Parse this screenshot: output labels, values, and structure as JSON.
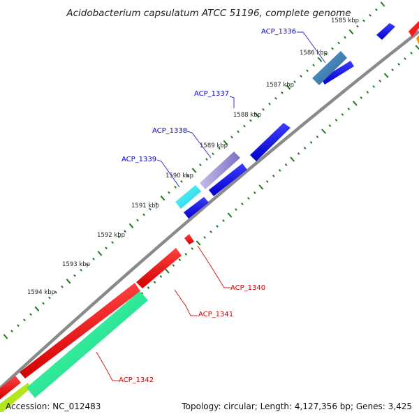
{
  "title": "Acidobacterium capsulatum ATCC 51196, complete genome",
  "footer": {
    "accession": "Accession: NC_012483",
    "topology": "Topology: circular; Length: 4,127,356 bp; Genes: 3,425"
  },
  "scale_labels": [
    "1585 kbp",
    "1586 kbp",
    "1587 kbp",
    "1588 kbp",
    "1589 kbp",
    "1590 kbp",
    "1591 kbp",
    "1592 kbp",
    "1593 kbp",
    "1594 kbp"
  ],
  "forward_genes": [
    {
      "label": "ACP_1336",
      "color": "#4682b4"
    },
    {
      "label": "ACP_1337",
      "color": "#9b8fd6"
    },
    {
      "label": "ACP_1338",
      "color": "#00e5ee"
    },
    {
      "label": "ACP_1339",
      "color": ""
    }
  ],
  "reverse_genes": [
    {
      "label": "ACP_1340",
      "color": "#ff0000"
    },
    {
      "label": "ACP_1341",
      "color": "#ff0000"
    },
    {
      "label": "ACP_1342",
      "color": "#00ee88"
    }
  ],
  "colors": {
    "backbone": "#808080",
    "cds_forward": "#0000ee",
    "cds_reverse": "#ff0000",
    "tick_marks": "#1a7a1a",
    "forward_label": "#0000cc",
    "reverse_label": "#cc0000",
    "orange_feature": "#ff8c00",
    "yellowgreen_feature": "#b4e61e"
  }
}
